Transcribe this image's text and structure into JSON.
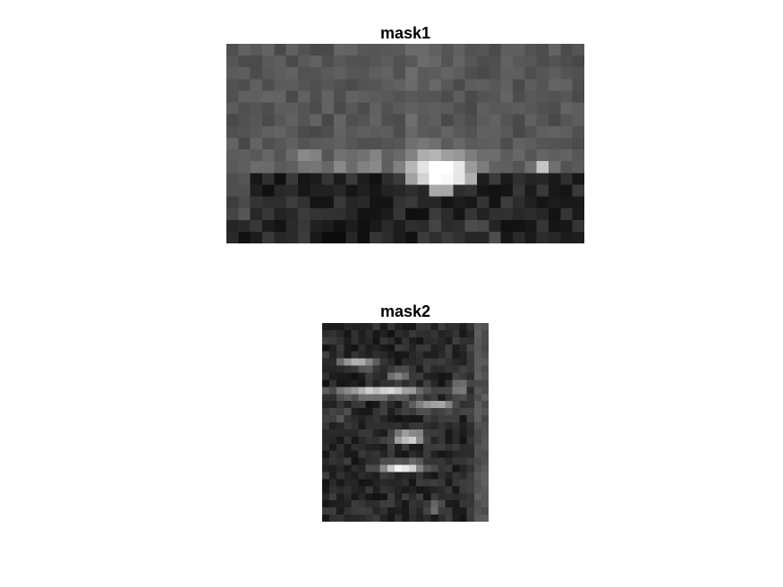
{
  "figure": {
    "background": "#ffffff",
    "colormap": "gray",
    "panels": [
      {
        "title": "mask1",
        "grid": [
          30,
          17
        ]
      },
      {
        "title": "mask2",
        "grid": [
          23,
          28
        ]
      }
    ]
  }
}
